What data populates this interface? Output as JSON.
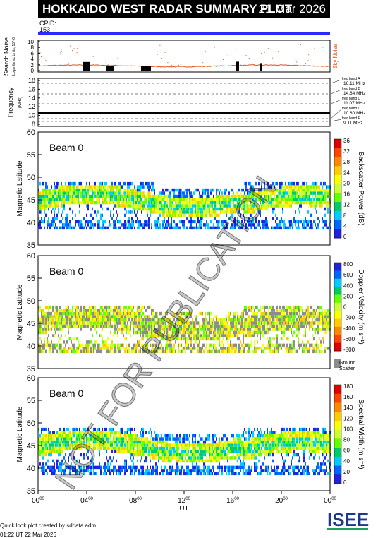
{
  "header": {
    "title": "HOKKAIDO WEST RADAR SUMMARY PLOT",
    "date": "21 Mar 2026",
    "cpid_label": "CPID:",
    "cpid_value": "153"
  },
  "noise_panel": {
    "ylabel": "Search Noise",
    "yunit": "Logarithmic Units, 10^-6",
    "right_label": "Sky Noise",
    "yticks": [
      "10",
      "8",
      "6",
      "4",
      "2",
      "0"
    ]
  },
  "freq_panel": {
    "ylabel": "Frequency",
    "yunit": "(MHz)",
    "yticks": [
      "18",
      "16",
      "14",
      "12",
      "10",
      "8"
    ],
    "bands": [
      {
        "name": "freq band A",
        "value": "16.11 MHz"
      },
      {
        "name": "freq band B",
        "value": "14.64 MHz"
      },
      {
        "name": "freq band C",
        "value": "11.07 MHz"
      },
      {
        "name": "freq band D",
        "value": "10.80 MHz"
      },
      {
        "name": "freq band E",
        "value": "9.11 MHz"
      }
    ]
  },
  "panels": [
    {
      "beam_label": "Beam  0",
      "ylabel": "Magnetic Latitude",
      "colorbar_label": "Backscatter Power (dB)",
      "colorbar_ticks": [
        "36",
        "32",
        "28",
        "24",
        "20",
        "16",
        "12",
        "8",
        "4",
        "0"
      ],
      "colors": [
        "#e00000",
        "#ff4400",
        "#ff8800",
        "#ffcc00",
        "#ffff00",
        "#ccff33",
        "#66ff00",
        "#00cc66",
        "#00ccff",
        "#0066ff",
        "#2222dd"
      ]
    },
    {
      "beam_label": "Beam  0",
      "ylabel": "Magnetic Latitude",
      "colorbar_label": "Doppler Velocity (m s⁻¹)",
      "colorbar_ticks": [
        "800",
        "600",
        "400",
        "200",
        "0",
        "-200",
        "-400",
        "-600",
        "-800"
      ],
      "ground_label_1": "Ground",
      "ground_label_2": "Scatter",
      "colors": [
        "#2222dd",
        "#0066ff",
        "#00ccff",
        "#00cc66",
        "#66ff00",
        "#ccff33",
        "#ffff00",
        "#ffcc00",
        "#ff8800",
        "#ff4400",
        "#e00000"
      ]
    },
    {
      "beam_label": "Beam  0",
      "ylabel": "Magnetic Latitude",
      "colorbar_label": "Spectral Width (m s⁻¹)",
      "colorbar_ticks": [
        "180",
        "160",
        "140",
        "120",
        "100",
        "80",
        "60",
        "40",
        "20",
        "0"
      ],
      "colors": [
        "#e00000",
        "#ff4400",
        "#ff8800",
        "#ffcc00",
        "#ffff00",
        "#ccff33",
        "#66ff00",
        "#00cc66",
        "#00ccff",
        "#0066ff",
        "#2222dd"
      ]
    }
  ],
  "lat_ticks": [
    "60",
    "55",
    "50",
    "45",
    "40",
    "35"
  ],
  "x_axis": {
    "label": "UT",
    "ticks": [
      "00",
      "04",
      "08",
      "12",
      "16",
      "20",
      "00"
    ],
    "tick_sup": "00"
  },
  "watermark": "NOT FOR PUBLICATION",
  "footer": {
    "credit": "Quick look plot created by sddata.adm",
    "time": "01:22 UT 22 Mar 2026"
  },
  "logo_text": "ISEE",
  "chart_data": [
    {
      "type": "line",
      "title": "Search Noise",
      "ylim": [
        0,
        10
      ],
      "xlim_hours": [
        0,
        24
      ]
    },
    {
      "type": "line",
      "title": "Frequency",
      "ylim": [
        8,
        18
      ],
      "xlim_hours": [
        0,
        24
      ]
    },
    {
      "type": "heatmap",
      "title": "Backscatter Power (dB)",
      "ylim": [
        35,
        60
      ],
      "xlim_hours": [
        0,
        24
      ],
      "zlim": [
        0,
        36
      ]
    },
    {
      "type": "heatmap",
      "title": "Doppler Velocity",
      "ylim": [
        35,
        60
      ],
      "xlim_hours": [
        0,
        24
      ],
      "zlim": [
        -800,
        800
      ]
    },
    {
      "type": "heatmap",
      "title": "Spectral Width",
      "ylim": [
        35,
        60
      ],
      "xlim_hours": [
        0,
        24
      ],
      "zlim": [
        0,
        180
      ]
    }
  ]
}
